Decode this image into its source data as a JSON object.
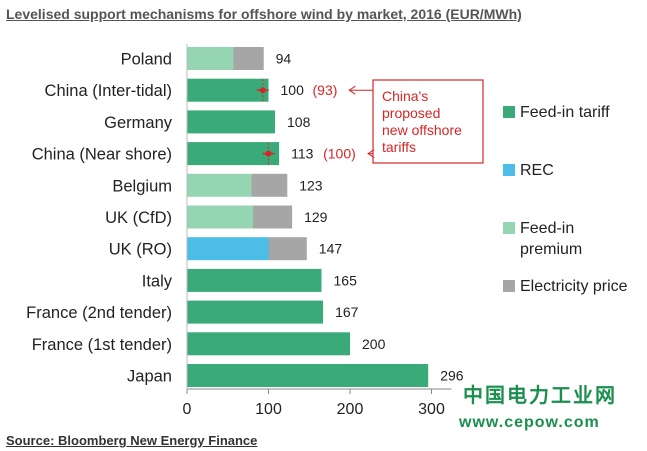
{
  "title": "Levelised support mechanisms for offshore wind by market, 2016 (EUR/MWh)",
  "source": "Source: Bloomberg New Energy Finance",
  "watermark": {
    "line1": "中国电力工业网",
    "line2": "www.cepow.com"
  },
  "colors": {
    "feed_in_tariff": "#3aaa78",
    "rec": "#4bbde6",
    "feed_in_premium": "#95d5b2",
    "electricity_price": "#a6a6a6",
    "callout": "#d62728"
  },
  "chart_data": {
    "type": "bar",
    "orientation": "horizontal",
    "stacked": true,
    "categories": [
      "Poland",
      "China (Inter-tidal)",
      "Germany",
      "China (Near shore)",
      "Belgium",
      "UK (CfD)",
      "UK (RO)",
      "Italy",
      "France (2nd tender)",
      "France (1st tender)",
      "Japan"
    ],
    "series": [
      {
        "name": "Feed-in tariff",
        "key": "feed_in_tariff",
        "values": [
          0,
          100,
          108,
          113,
          0,
          0,
          0,
          165,
          167,
          200,
          296
        ]
      },
      {
        "name": "REC",
        "key": "rec",
        "values": [
          0,
          0,
          0,
          0,
          0,
          0,
          100,
          0,
          0,
          0,
          0
        ]
      },
      {
        "name": "Feed-in premium",
        "key": "feed_in_premium",
        "values": [
          57,
          0,
          0,
          0,
          79,
          81,
          0,
          0,
          0,
          0,
          0
        ]
      },
      {
        "name": "Electricity price",
        "key": "electricity_price",
        "values": [
          37,
          0,
          0,
          0,
          44,
          48,
          47,
          0,
          0,
          0,
          0
        ]
      }
    ],
    "totals": [
      94,
      100,
      108,
      113,
      123,
      129,
      147,
      165,
      167,
      200,
      296
    ],
    "total_labels": [
      "94",
      "100",
      "108",
      "113",
      "123",
      "129",
      "147",
      "165",
      "167",
      "200",
      "296"
    ],
    "proposed_markers": [
      {
        "category": "China (Inter-tidal)",
        "value": 93,
        "label": "(93)"
      },
      {
        "category": "China (Near shore)",
        "value": 100,
        "label": "(100)"
      }
    ],
    "callout": {
      "lines": [
        "China's",
        "proposed",
        "new offshore",
        "tariffs"
      ]
    },
    "xlim": [
      0,
      300
    ],
    "xticks": [
      0,
      100,
      200,
      300
    ],
    "xtick_labels": [
      "0",
      "100",
      "200",
      "300"
    ],
    "grid": false,
    "legend": {
      "placement": "right",
      "items": [
        {
          "key": "feed_in_tariff",
          "lines": [
            "Feed-in tariff"
          ]
        },
        {
          "key": "rec",
          "lines": [
            "REC"
          ]
        },
        {
          "key": "feed_in_premium",
          "lines": [
            "Feed-in",
            "premium"
          ]
        },
        {
          "key": "electricity_price",
          "lines": [
            "Electricity price"
          ]
        }
      ]
    }
  }
}
